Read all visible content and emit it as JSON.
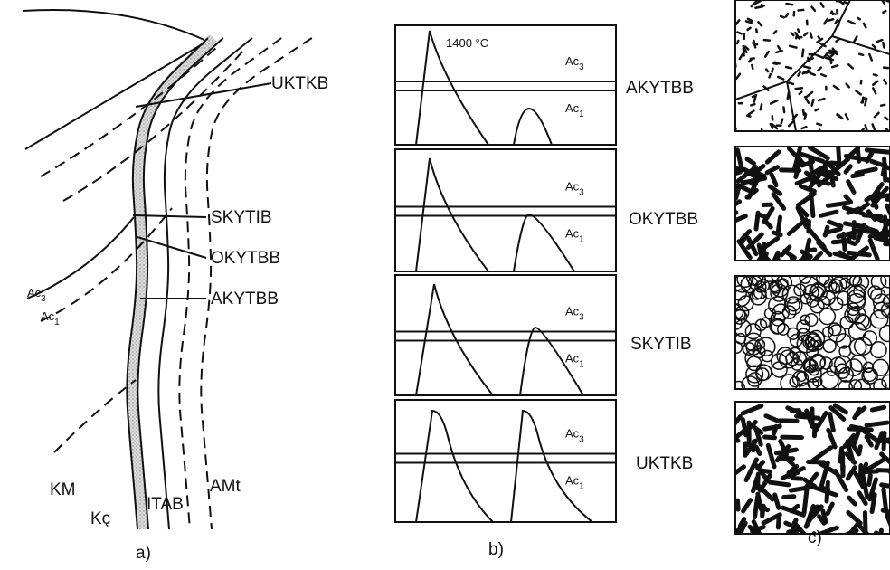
{
  "panel_a": {
    "caption": "a)",
    "zones": [
      "UKTKB",
      "SKYTIB",
      "OKYTBB",
      "AKYTBB"
    ],
    "isotherms": [
      {
        "text": "Ac",
        "sub": "3"
      },
      {
        "text": "Ac",
        "sub": "1"
      }
    ],
    "regions": [
      "KM",
      "Kç",
      "ITAB",
      "AMt"
    ]
  },
  "panel_b": {
    "caption": "b)",
    "peak_label": "1400 °C",
    "graphs": [
      {
        "label": "AKYTBB",
        "upper": {
          "text": "Ac",
          "sub": "3"
        },
        "lower": {
          "text": "Ac",
          "sub": "1"
        }
      },
      {
        "label": "OKYTBB",
        "upper": {
          "text": "Ac",
          "sub": "3"
        },
        "lower": {
          "text": "Ac",
          "sub": "1"
        }
      },
      {
        "label": "SKYTIB",
        "upper": {
          "text": "Ac",
          "sub": "3"
        },
        "lower": {
          "text": "Ac",
          "sub": "1"
        }
      },
      {
        "label": "UKTKB",
        "upper": {
          "text": "Ac",
          "sub": "3"
        },
        "lower": {
          "text": "Ac",
          "sub": "1"
        }
      }
    ]
  },
  "panel_c": {
    "caption": "c)"
  }
}
